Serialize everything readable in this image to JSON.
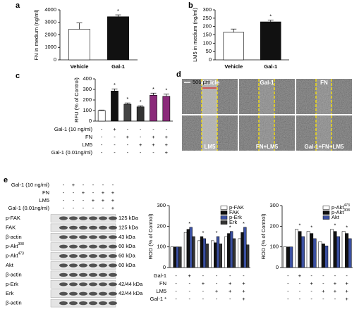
{
  "chart_data": [
    {
      "type": "bar",
      "panel": "a",
      "ylabel": "FN in medium (ng/ml)",
      "categories": [
        "Vehicle",
        "Gal-1"
      ],
      "values": [
        2450,
        3450
      ],
      "errors": [
        500,
        150
      ],
      "colors": [
        "#ffffff",
        "#111111"
      ],
      "ylim": [
        0,
        4000
      ],
      "yticks": [
        0,
        1000,
        2000,
        3000,
        4000
      ],
      "annotations": [
        {
          "index": 1,
          "text": "*"
        }
      ]
    },
    {
      "type": "bar",
      "panel": "b",
      "ylabel": "LM5 in medium (ng/ml)",
      "categories": [
        "Vehicle",
        "Gal-1"
      ],
      "values": [
        165,
        228
      ],
      "errors": [
        20,
        10
      ],
      "colors": [
        "#ffffff",
        "#111111"
      ],
      "ylim": [
        0,
        300
      ],
      "yticks": [
        0,
        50,
        100,
        150,
        200,
        250,
        300
      ],
      "annotations": [
        {
          "index": 1,
          "text": "*"
        }
      ]
    },
    {
      "type": "bar",
      "panel": "c",
      "ylabel": "RFU (% of Control)",
      "values": [
        100,
        285,
        160,
        135,
        245,
        235
      ],
      "errors": [
        5,
        20,
        12,
        10,
        20,
        20
      ],
      "colors": [
        "#ffffff",
        "#111111",
        "#444444",
        "#333333",
        "#8b2a7a",
        "#8b2a7a"
      ],
      "ylim": [
        0,
        400
      ],
      "yticks": [
        0,
        100,
        200,
        300,
        400
      ],
      "annotations": [
        {
          "index": 1,
          "text": "*"
        },
        {
          "index": 2,
          "text": "*"
        },
        {
          "index": 3,
          "text": "*"
        },
        {
          "index": 4,
          "text": "*"
        },
        {
          "index": 5,
          "text": "*"
        }
      ],
      "treatments": [
        {
          "label": "Gal-1 (10 ng/ml)",
          "signs": [
            "-",
            "+",
            "-",
            "-",
            "-",
            "-"
          ]
        },
        {
          "label": "FN",
          "signs": [
            "-",
            "-",
            "+",
            "-",
            "+",
            "+"
          ]
        },
        {
          "label": "LM5",
          "signs": [
            "-",
            "-",
            "-",
            "+",
            "+",
            "+"
          ]
        },
        {
          "label": "Gal-1 (0.01ng/ml)",
          "signs": [
            "-",
            "-",
            "-",
            "-",
            "-",
            "+"
          ]
        }
      ]
    },
    {
      "type": "grouped_bar",
      "panel": "e",
      "ylabel": "ROD (% of Control)",
      "legend": "upper right",
      "series": [
        {
          "name": "p-FAK",
          "color": "#ffffff",
          "values": [
            100,
            170,
            130,
            130,
            150,
            140
          ]
        },
        {
          "name": "FAK",
          "color": "#111111",
          "values": [
            100,
            185,
            150,
            120,
            165,
            170
          ]
        },
        {
          "name": "p-Erk",
          "color": "#3a4fa0",
          "values": [
            100,
            195,
            140,
            150,
            175,
            195
          ]
        },
        {
          "name": "Erk",
          "color": "#333333",
          "values": [
            100,
            150,
            115,
            115,
            140,
            110
          ]
        }
      ],
      "ylim": [
        0,
        300
      ],
      "yticks": [
        0,
        100,
        200,
        300
      ],
      "annotations": [
        {
          "index": 1,
          "text": "*"
        },
        {
          "index": 2,
          "text": "*"
        },
        {
          "index": 3,
          "text": "*"
        },
        {
          "index": 4,
          "text": "*"
        },
        {
          "index": 5,
          "text": "*"
        }
      ],
      "treatments": [
        {
          "label": "Gal-1",
          "signs": [
            "-",
            "+",
            "-",
            "-",
            "-",
            "-"
          ]
        },
        {
          "label": "FN",
          "signs": [
            "-",
            "-",
            "+",
            "-",
            "+",
            "+"
          ]
        },
        {
          "label": "LM5",
          "signs": [
            "-",
            "-",
            "-",
            "+",
            "+",
            "+"
          ]
        },
        {
          "label": "Gal-1 *",
          "signs": [
            "-",
            "-",
            "-",
            "-",
            "-",
            "+"
          ]
        }
      ]
    },
    {
      "type": "grouped_bar",
      "ylabel": "ROD (% of Control)",
      "legend": "upper right",
      "series": [
        {
          "name": "p-Akt",
          "name_sup": "473",
          "color": "#ffffff",
          "values": [
            100,
            185,
            175,
            125,
            185,
            175
          ]
        },
        {
          "name": "p-Akt",
          "name_sup": "308",
          "color": "#111111",
          "values": [
            100,
            175,
            165,
            115,
            175,
            165
          ]
        },
        {
          "name": "Akt",
          "color": "#3a4fa0",
          "values": [
            100,
            150,
            140,
            105,
            150,
            140
          ]
        }
      ],
      "ylim": [
        0,
        300
      ],
      "yticks": [
        0,
        100,
        200,
        300
      ],
      "annotations": [
        {
          "index": 1,
          "text": "*"
        },
        {
          "index": 2,
          "text": "*"
        },
        {
          "index": 4,
          "text": "*"
        },
        {
          "index": 5,
          "text": "*"
        }
      ],
      "treatments": [
        {
          "signs": [
            "-",
            "+",
            "-",
            "-",
            "-",
            "-"
          ]
        },
        {
          "signs": [
            "-",
            "-",
            "+",
            "-",
            "+",
            "+"
          ]
        },
        {
          "signs": [
            "-",
            "-",
            "-",
            "+",
            "+",
            "+"
          ]
        },
        {
          "signs": [
            "-",
            "-",
            "-",
            "-",
            "-",
            "+"
          ]
        }
      ]
    }
  ],
  "images": {
    "panel": "d",
    "scale": "500 µm",
    "labels": [
      "Vehicle",
      "Gal-1",
      "FN",
      "LM5",
      "FN+LM5",
      "Gal-1+FN+LM5"
    ]
  },
  "blot": {
    "treatments": [
      {
        "label": "Gal-1 (10 ng/ml)",
        "signs": [
          "-",
          "+",
          "-",
          "-",
          "-",
          "-"
        ]
      },
      {
        "label": "FN",
        "signs": [
          "-",
          "-",
          "+",
          "-",
          "+",
          "+"
        ]
      },
      {
        "label": "LM5",
        "signs": [
          "-",
          "-",
          "-",
          "+",
          "+",
          "+"
        ]
      },
      {
        "label": "Gal-1 (0.01ng/ml)",
        "signs": [
          "-",
          "-",
          "-",
          "-",
          "-",
          "+"
        ]
      }
    ],
    "rows": [
      {
        "label": "p-FAK",
        "kda": "125 kDa"
      },
      {
        "label": "FAK",
        "kda": "125 kDa"
      },
      {
        "label": "β-actin",
        "kda": "43 kDa"
      },
      {
        "label": "p-Akt",
        "sup": "308",
        "kda": "60 kDa"
      },
      {
        "label": "p-Akt",
        "sup": "473",
        "kda": "60 kDa"
      },
      {
        "label": "Akt",
        "kda": "60 kDa"
      },
      {
        "label": "β-actin"
      },
      {
        "label": "p-Erk",
        "kda": "42/44 kDa"
      },
      {
        "label": "Erk",
        "kda": "42/44 kDa"
      },
      {
        "label": "β-actin"
      }
    ]
  }
}
